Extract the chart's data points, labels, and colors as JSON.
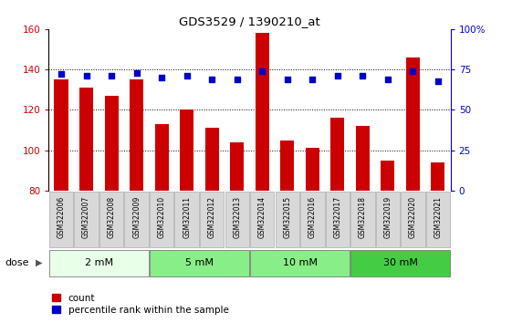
{
  "title": "GDS3529 / 1390210_at",
  "samples": [
    "GSM322006",
    "GSM322007",
    "GSM322008",
    "GSM322009",
    "GSM322010",
    "GSM322011",
    "GSM322012",
    "GSM322013",
    "GSM322014",
    "GSM322015",
    "GSM322016",
    "GSM322017",
    "GSM322018",
    "GSM322019",
    "GSM322020",
    "GSM322021"
  ],
  "counts": [
    135,
    131,
    127,
    135,
    113,
    120,
    111,
    104,
    158,
    105,
    101,
    116,
    112,
    95,
    146,
    94
  ],
  "percentiles": [
    72,
    71,
    71,
    73,
    70,
    71,
    69,
    69,
    74,
    69,
    69,
    71,
    71,
    69,
    74,
    68
  ],
  "bar_color": "#cc0000",
  "dot_color": "#0000cc",
  "ylim_left": [
    80,
    160
  ],
  "ylim_right": [
    0,
    100
  ],
  "yticks_left": [
    80,
    100,
    120,
    140,
    160
  ],
  "yticks_right": [
    0,
    25,
    50,
    75,
    100
  ],
  "yticklabels_right": [
    "0",
    "25",
    "50",
    "75",
    "100%"
  ],
  "dose_groups": [
    {
      "label": "2 mM",
      "start": 0,
      "end": 3,
      "color": "#e8ffe8"
    },
    {
      "label": "5 mM",
      "start": 4,
      "end": 7,
      "color": "#88ee88"
    },
    {
      "label": "10 mM",
      "start": 8,
      "end": 11,
      "color": "#88ee88"
    },
    {
      "label": "30 mM",
      "start": 12,
      "end": 15,
      "color": "#44cc44"
    }
  ],
  "dose_label": "dose",
  "legend_count_label": "count",
  "legend_pct_label": "percentile rank within the sample",
  "background_color": "#ffffff",
  "plot_bg": "#ffffff",
  "xticklabel_bg": "#d8d8d8"
}
